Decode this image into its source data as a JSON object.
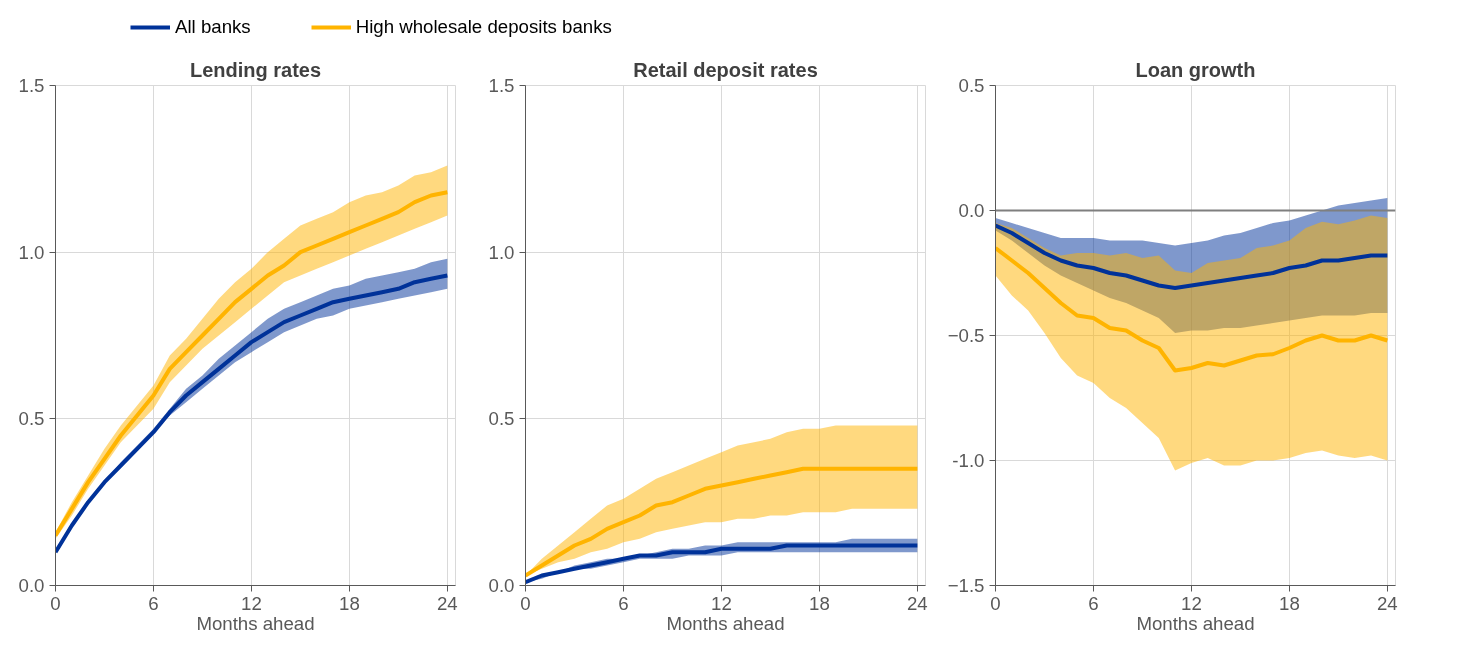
{
  "chart_data": [
    {
      "type": "line",
      "title": "Lending rates",
      "xlabel": "Months ahead",
      "x": [
        0,
        1,
        2,
        3,
        4,
        5,
        6,
        7,
        8,
        9,
        10,
        11,
        12,
        13,
        14,
        15,
        16,
        17,
        18,
        19,
        20,
        21,
        22,
        23,
        24
      ],
      "xlim": [
        0,
        24.5
      ],
      "xticks": [
        0,
        6,
        12,
        18,
        24
      ],
      "ylim": [
        0,
        1.5
      ],
      "yticks": [
        {
          "value": 0,
          "label": "0.0"
        },
        0.5,
        {
          "value": 1,
          "label": "1.0"
        },
        1.5
      ],
      "grid": true,
      "legend": "top",
      "line_style": "solid",
      "marker": "none",
      "series": [
        {
          "name": "All banks",
          "color": "#003299",
          "values": [
            0.1,
            0.18,
            0.25,
            0.31,
            0.36,
            0.41,
            0.46,
            0.52,
            0.57,
            0.61,
            0.65,
            0.69,
            0.73,
            0.76,
            0.79,
            0.81,
            0.83,
            0.85,
            0.86,
            0.87,
            0.88,
            0.89,
            0.91,
            0.92,
            0.93
          ],
          "lower": [
            0.1,
            0.18,
            0.25,
            0.31,
            0.36,
            0.41,
            0.46,
            0.51,
            0.55,
            0.59,
            0.63,
            0.67,
            0.7,
            0.73,
            0.76,
            0.78,
            0.8,
            0.81,
            0.83,
            0.84,
            0.85,
            0.86,
            0.87,
            0.88,
            0.89
          ],
          "upper": [
            0.1,
            0.18,
            0.25,
            0.31,
            0.37,
            0.42,
            0.47,
            0.53,
            0.59,
            0.63,
            0.68,
            0.72,
            0.76,
            0.8,
            0.83,
            0.85,
            0.87,
            0.89,
            0.9,
            0.92,
            0.93,
            0.94,
            0.95,
            0.97,
            0.98
          ]
        },
        {
          "name": "High wholesale deposits banks",
          "color": "#ffb400",
          "values": [
            0.15,
            0.23,
            0.31,
            0.38,
            0.45,
            0.51,
            0.57,
            0.65,
            0.7,
            0.75,
            0.8,
            0.85,
            0.89,
            0.93,
            0.96,
            1.0,
            1.02,
            1.04,
            1.06,
            1.08,
            1.1,
            1.12,
            1.15,
            1.17,
            1.18
          ],
          "lower": [
            0.14,
            0.21,
            0.29,
            0.36,
            0.43,
            0.48,
            0.53,
            0.61,
            0.66,
            0.71,
            0.75,
            0.79,
            0.83,
            0.87,
            0.91,
            0.93,
            0.95,
            0.97,
            0.99,
            1.01,
            1.03,
            1.05,
            1.07,
            1.09,
            1.11
          ],
          "upper": [
            0.16,
            0.25,
            0.33,
            0.41,
            0.48,
            0.54,
            0.6,
            0.69,
            0.74,
            0.8,
            0.86,
            0.91,
            0.95,
            1.0,
            1.04,
            1.08,
            1.1,
            1.12,
            1.15,
            1.17,
            1.18,
            1.2,
            1.23,
            1.24,
            1.26
          ]
        }
      ]
    },
    {
      "type": "line",
      "title": "Retail deposit rates",
      "xlabel": "Months ahead",
      "x": [
        0,
        1,
        2,
        3,
        4,
        5,
        6,
        7,
        8,
        9,
        10,
        11,
        12,
        13,
        14,
        15,
        16,
        17,
        18,
        19,
        20,
        21,
        22,
        23,
        24
      ],
      "xlim": [
        0,
        24.5
      ],
      "xticks": [
        0,
        6,
        12,
        18,
        24
      ],
      "ylim": [
        0,
        1.5
      ],
      "yticks": [
        {
          "value": 0,
          "label": "0.0"
        },
        0.5,
        {
          "value": 1,
          "label": "1.0"
        },
        1.5
      ],
      "grid": true,
      "line_style": "solid",
      "marker": "none",
      "series": [
        {
          "color": "#003299",
          "values": [
            0.01,
            0.03,
            0.04,
            0.05,
            0.06,
            0.07,
            0.08,
            0.09,
            0.09,
            0.1,
            0.1,
            0.1,
            0.11,
            0.11,
            0.11,
            0.11,
            0.12,
            0.12,
            0.12,
            0.12,
            0.12,
            0.12,
            0.12,
            0.12,
            0.12
          ],
          "lower": [
            0.01,
            0.02,
            0.04,
            0.05,
            0.05,
            0.06,
            0.07,
            0.08,
            0.08,
            0.08,
            0.09,
            0.09,
            0.09,
            0.1,
            0.1,
            0.1,
            0.1,
            0.1,
            0.1,
            0.1,
            0.1,
            0.1,
            0.1,
            0.1,
            0.1
          ],
          "upper": [
            0.01,
            0.03,
            0.04,
            0.06,
            0.07,
            0.08,
            0.08,
            0.09,
            0.1,
            0.11,
            0.11,
            0.12,
            0.12,
            0.13,
            0.13,
            0.13,
            0.13,
            0.13,
            0.13,
            0.13,
            0.14,
            0.14,
            0.14,
            0.14,
            0.14
          ]
        },
        {
          "color": "#ffb400",
          "values": [
            0.03,
            0.06,
            0.09,
            0.12,
            0.14,
            0.17,
            0.19,
            0.21,
            0.24,
            0.25,
            0.27,
            0.29,
            0.3,
            0.31,
            0.32,
            0.33,
            0.34,
            0.35,
            0.35,
            0.35,
            0.35,
            0.35,
            0.35,
            0.35,
            0.35
          ],
          "lower": [
            0.03,
            0.05,
            0.07,
            0.08,
            0.1,
            0.11,
            0.13,
            0.14,
            0.16,
            0.17,
            0.18,
            0.19,
            0.19,
            0.2,
            0.2,
            0.21,
            0.21,
            0.22,
            0.22,
            0.22,
            0.23,
            0.23,
            0.23,
            0.23,
            0.23
          ],
          "upper": [
            0.03,
            0.08,
            0.12,
            0.16,
            0.2,
            0.24,
            0.26,
            0.29,
            0.32,
            0.34,
            0.36,
            0.38,
            0.4,
            0.42,
            0.43,
            0.44,
            0.46,
            0.47,
            0.47,
            0.48,
            0.48,
            0.48,
            0.48,
            0.48,
            0.48
          ]
        }
      ]
    },
    {
      "type": "line",
      "title": "Loan growth",
      "xlabel": "Months ahead",
      "x": [
        0,
        1,
        2,
        3,
        4,
        5,
        6,
        7,
        8,
        9,
        10,
        11,
        12,
        13,
        14,
        15,
        16,
        17,
        18,
        19,
        20,
        21,
        22,
        23,
        24
      ],
      "xlim": [
        0,
        24.5
      ],
      "xticks": [
        0,
        6,
        12,
        18,
        24
      ],
      "ylim": [
        -1.5,
        0.5
      ],
      "yticks": [
        -1.5,
        {
          "value": -1,
          "label": "-1.0"
        },
        -0.5,
        {
          "value": 0,
          "label": "0.0"
        },
        0.5
      ],
      "grid": true,
      "line_style": "solid",
      "marker": "none",
      "ref_lines": [
        {
          "axis": "y",
          "value": 0,
          "color": "#7f7f7f"
        }
      ],
      "series": [
        {
          "color": "#003299",
          "values": [
            -0.06,
            -0.09,
            -0.13,
            -0.17,
            -0.2,
            -0.22,
            -0.23,
            -0.25,
            -0.26,
            -0.28,
            -0.3,
            -0.31,
            -0.3,
            -0.29,
            -0.28,
            -0.27,
            -0.26,
            -0.25,
            -0.23,
            -0.22,
            -0.2,
            -0.2,
            -0.19,
            -0.18,
            -0.18
          ],
          "lower": [
            -0.08,
            -0.12,
            -0.17,
            -0.22,
            -0.26,
            -0.29,
            -0.32,
            -0.35,
            -0.37,
            -0.4,
            -0.43,
            -0.49,
            -0.48,
            -0.48,
            -0.47,
            -0.47,
            -0.46,
            -0.45,
            -0.44,
            -0.43,
            -0.42,
            -0.42,
            -0.42,
            -0.41,
            -0.41
          ],
          "upper": [
            -0.03,
            -0.05,
            -0.07,
            -0.09,
            -0.11,
            -0.11,
            -0.11,
            -0.12,
            -0.12,
            -0.12,
            -0.13,
            -0.14,
            -0.13,
            -0.12,
            -0.1,
            -0.09,
            -0.07,
            -0.05,
            -0.04,
            -0.02,
            0.0,
            0.02,
            0.03,
            0.04,
            0.05
          ]
        },
        {
          "color": "#ffb400",
          "values": [
            -0.15,
            -0.2,
            -0.25,
            -0.31,
            -0.37,
            -0.42,
            -0.43,
            -0.47,
            -0.48,
            -0.52,
            -0.55,
            -0.64,
            -0.63,
            -0.61,
            -0.62,
            -0.6,
            -0.58,
            -0.575,
            -0.55,
            -0.52,
            -0.5,
            -0.52,
            -0.52,
            -0.5,
            -0.52
          ],
          "lower": [
            -0.26,
            -0.34,
            -0.4,
            -0.49,
            -0.59,
            -0.66,
            -0.69,
            -0.75,
            -0.79,
            -0.85,
            -0.91,
            -1.04,
            -1.01,
            -0.99,
            -1.02,
            -1.02,
            -1.0,
            -1.0,
            -0.99,
            -0.97,
            -0.96,
            -0.98,
            -0.99,
            -0.98,
            -1.0
          ],
          "upper": [
            -0.05,
            -0.07,
            -0.11,
            -0.15,
            -0.18,
            -0.17,
            -0.17,
            -0.18,
            -0.17,
            -0.19,
            -0.18,
            -0.24,
            -0.25,
            -0.21,
            -0.2,
            -0.19,
            -0.15,
            -0.14,
            -0.12,
            -0.07,
            -0.045,
            -0.055,
            -0.04,
            -0.02,
            -0.03
          ]
        }
      ]
    }
  ]
}
